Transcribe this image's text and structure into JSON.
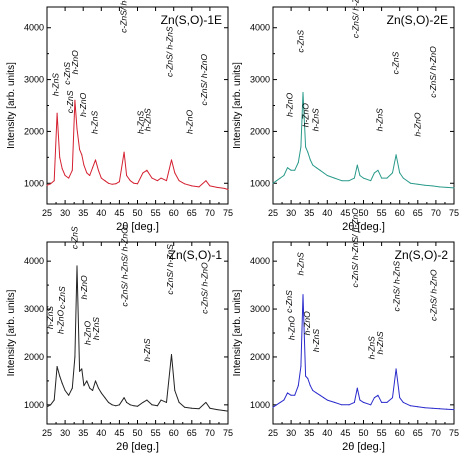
{
  "chart_data": [
    {
      "type": "line",
      "title": "Zn(S,O)-1E",
      "xlabel": "2θ [deg.]",
      "ylabel": "Intensity [arb. units]",
      "xlim": [
        25,
        75
      ],
      "ylim": [
        600,
        4400
      ],
      "xticks": [
        25,
        30,
        35,
        40,
        45,
        50,
        55,
        60,
        65,
        70,
        75
      ],
      "yticks": [
        1000,
        2000,
        3000,
        4000
      ],
      "color": "#d42030",
      "series": [
        {
          "x": [
            25,
            26,
            27,
            27.8,
            28.5,
            29.2,
            30,
            31,
            32,
            32.7,
            33.3,
            34,
            34.6,
            35.2,
            36,
            36.8,
            37.6,
            38.4,
            39.2,
            40,
            41,
            42,
            43,
            44,
            45,
            46.3,
            47,
            48,
            49,
            50,
            51.5,
            52.6,
            54,
            55.5,
            56.5,
            58,
            59.4,
            60.3,
            61.5,
            63,
            65,
            67,
            68.9,
            70,
            72,
            74,
            75
          ],
          "y": [
            960,
            990,
            1050,
            2350,
            1500,
            1280,
            1150,
            1100,
            1250,
            2600,
            2050,
            1650,
            1550,
            1350,
            1200,
            1150,
            1300,
            1450,
            1250,
            1100,
            1050,
            1000,
            980,
            990,
            1030,
            1600,
            1150,
            1050,
            1000,
            990,
            1200,
            1250,
            1100,
            1050,
            1100,
            1050,
            1450,
            1200,
            1050,
            990,
            950,
            930,
            1050,
            950,
            920,
            900,
            880
          ]
        }
      ],
      "annotations": [
        "h-ZnS",
        "c-ZnS",
        "h-ZnO",
        "c-ZnS",
        "h-ZnO",
        "h-ZnS",
        "c-ZnS/ h-ZnS/ h-ZnO",
        "h-ZnS",
        "h-ZnS",
        "c-ZnS/ h-ZnS",
        "h-ZnO",
        "c-ZnS/ h-ZnO"
      ]
    },
    {
      "type": "line",
      "title": "Zn(S,O)-2E",
      "xlabel": "2θ [deg.]",
      "ylabel": "Intensity [arb. units]",
      "xlim": [
        25,
        75
      ],
      "ylim": [
        600,
        4400
      ],
      "xticks": [
        25,
        30,
        35,
        40,
        45,
        50,
        55,
        60,
        65,
        70,
        75
      ],
      "yticks": [
        1000,
        2000,
        3000,
        4000
      ],
      "color": "#2a9a8a",
      "series": [
        {
          "x": [
            25,
            26,
            27,
            28,
            29,
            30,
            31,
            32,
            32.7,
            33.3,
            34,
            34.6,
            35.3,
            36,
            37,
            38,
            39,
            40,
            42,
            44,
            46,
            47.5,
            48.3,
            49,
            50,
            52,
            53,
            54,
            55,
            56.5,
            58,
            59,
            60,
            61,
            63,
            65,
            67,
            69,
            71,
            73,
            75
          ],
          "y": [
            1000,
            1050,
            1100,
            1150,
            1300,
            1250,
            1250,
            1400,
            1700,
            2750,
            1700,
            1600,
            1450,
            1350,
            1300,
            1250,
            1200,
            1150,
            1100,
            1050,
            1050,
            1100,
            1350,
            1150,
            1100,
            1050,
            1200,
            1250,
            1100,
            1100,
            1200,
            1550,
            1200,
            1100,
            1000,
            980,
            960,
            950,
            930,
            920,
            910
          ]
        }
      ],
      "annotations": [
        "c-ZnS",
        "h-ZnO",
        "h-ZnO",
        "h-ZnS",
        "c-ZnS/ h-ZnS/ h-ZnO",
        "h-ZnS",
        "c-ZnS",
        "h-ZnO",
        "c-ZnS/ h-ZnO"
      ]
    },
    {
      "type": "line",
      "title": "Zn(S,O)-1",
      "xlabel": "2θ [deg.]",
      "ylabel": "Intensity [arb. units]",
      "xlim": [
        25,
        75
      ],
      "ylim": [
        600,
        4400
      ],
      "xticks": [
        25,
        30,
        35,
        40,
        45,
        50,
        55,
        60,
        65,
        70,
        75
      ],
      "yticks": [
        1000,
        2000,
        3000,
        4000
      ],
      "color": "#222222",
      "series": [
        {
          "x": [
            25,
            26,
            27,
            27.8,
            28.5,
            29.2,
            30,
            31,
            32,
            32.7,
            33.3,
            34,
            34.6,
            35.2,
            36,
            36.8,
            37.6,
            38.4,
            39.2,
            40,
            41,
            42,
            43,
            44,
            45,
            46.3,
            47,
            48,
            49,
            50,
            51.5,
            52.6,
            54,
            55.5,
            56.5,
            58,
            59.4,
            60.3,
            61.5,
            63,
            65,
            67,
            68.9,
            70,
            72,
            74,
            75
          ],
          "y": [
            960,
            1000,
            1100,
            1800,
            1600,
            1450,
            1300,
            1200,
            1350,
            2000,
            3900,
            1700,
            1750,
            1400,
            1500,
            1350,
            1300,
            1500,
            1350,
            1250,
            1150,
            1050,
            1000,
            980,
            1000,
            1150,
            1050,
            1000,
            980,
            970,
            1050,
            1100,
            1000,
            980,
            1100,
            1050,
            2050,
            1300,
            1050,
            950,
            930,
            920,
            1050,
            930,
            900,
            880,
            870
          ]
        }
      ],
      "annotations": [
        "c-ZnS",
        "c-ZnS",
        "h-ZnS",
        "h-ZnO",
        "h-ZnO",
        "h-ZnO",
        "h-ZnS",
        "c-ZnS/ h-ZnS/ h-ZnO",
        "h-ZnS",
        "c-ZnS/ h-ZnS",
        "c-ZnS/ h-ZnO"
      ]
    },
    {
      "type": "line",
      "title": "Zn(S,O)-2",
      "xlabel": "2θ [deg.]",
      "ylabel": "Intensity [arb. units]",
      "xlim": [
        25,
        75
      ],
      "ylim": [
        600,
        4400
      ],
      "xticks": [
        25,
        30,
        35,
        40,
        45,
        50,
        55,
        60,
        65,
        70,
        75
      ],
      "yticks": [
        1000,
        2000,
        3000,
        4000
      ],
      "color": "#2a2acc",
      "series": [
        {
          "x": [
            25,
            26,
            27,
            28,
            29,
            30,
            31,
            32,
            32.7,
            33.3,
            34,
            34.6,
            35.3,
            36,
            37,
            38,
            39,
            40,
            42,
            44,
            46,
            47.5,
            48.3,
            49,
            50,
            52,
            53,
            54,
            55,
            56.5,
            58,
            59,
            60,
            61,
            63,
            65,
            67,
            69,
            71,
            73,
            75
          ],
          "y": [
            950,
            1000,
            1050,
            1100,
            1250,
            1200,
            1200,
            1400,
            1800,
            3300,
            1600,
            1550,
            1400,
            1300,
            1250,
            1200,
            1150,
            1100,
            1050,
            1000,
            1000,
            1050,
            1350,
            1100,
            1050,
            1000,
            1150,
            1200,
            1050,
            1050,
            1150,
            1750,
            1150,
            1050,
            980,
            960,
            940,
            930,
            920,
            910,
            900
          ]
        }
      ],
      "annotations": [
        "c-ZnS",
        "h-ZnS",
        "h-ZnO",
        "h-ZnO",
        "h-ZnS",
        "c-ZnS/ h-ZnS/ h-ZnO",
        "h-ZnS",
        "h-ZnS",
        "c-ZnS/ h-ZnS",
        "c-ZnS/ h-ZnO"
      ]
    }
  ]
}
